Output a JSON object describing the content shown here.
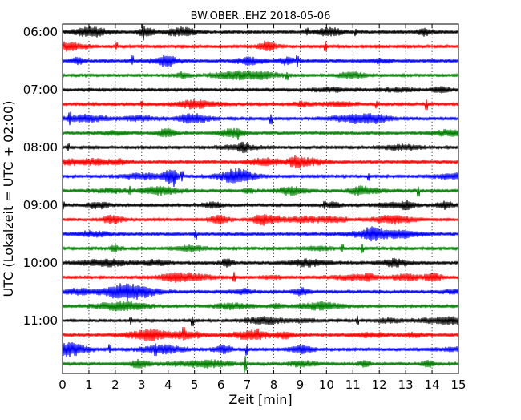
{
  "chart_data": {
    "type": "line",
    "title": "BW.OBER..EHZ 2018-05-06",
    "xlabel": "Zeit  [min]",
    "ylabel": "UTC (Lokalzeit = UTC + 02:00)",
    "xlim": [
      0,
      15
    ],
    "x_ticks": [
      "0",
      "1",
      "2",
      "3",
      "4",
      "5",
      "6",
      "7",
      "8",
      "9",
      "10",
      "11",
      "12",
      "13",
      "14",
      "15"
    ],
    "y_tick_labels": [
      "06:00",
      "07:00",
      "08:00",
      "09:00",
      "10:00",
      "11:00"
    ],
    "grid": "vertical dotted",
    "colors": [
      "#000000",
      "#ff0000",
      "#0000ff",
      "#008000"
    ],
    "traces": [
      {
        "start": "06:00",
        "color": "#000000"
      },
      {
        "start": "06:15",
        "color": "#ff0000"
      },
      {
        "start": "06:30",
        "color": "#0000ff"
      },
      {
        "start": "06:45",
        "color": "#008000"
      },
      {
        "start": "07:00",
        "color": "#000000"
      },
      {
        "start": "07:15",
        "color": "#ff0000"
      },
      {
        "start": "07:30",
        "color": "#0000ff"
      },
      {
        "start": "07:45",
        "color": "#008000"
      },
      {
        "start": "08:00",
        "color": "#000000"
      },
      {
        "start": "08:15",
        "color": "#ff0000"
      },
      {
        "start": "08:30",
        "color": "#0000ff"
      },
      {
        "start": "08:45",
        "color": "#008000"
      },
      {
        "start": "09:00",
        "color": "#000000"
      },
      {
        "start": "09:15",
        "color": "#ff0000"
      },
      {
        "start": "09:30",
        "color": "#0000ff"
      },
      {
        "start": "09:45",
        "color": "#008000"
      },
      {
        "start": "10:00",
        "color": "#000000"
      },
      {
        "start": "10:15",
        "color": "#ff0000"
      },
      {
        "start": "10:30",
        "color": "#0000ff"
      },
      {
        "start": "10:45",
        "color": "#008000"
      },
      {
        "start": "11:00",
        "color": "#000000"
      },
      {
        "start": "11:15",
        "color": "#ff0000"
      },
      {
        "start": "11:30",
        "color": "#0000ff"
      },
      {
        "start": "11:45",
        "color": "#008000"
      }
    ]
  }
}
